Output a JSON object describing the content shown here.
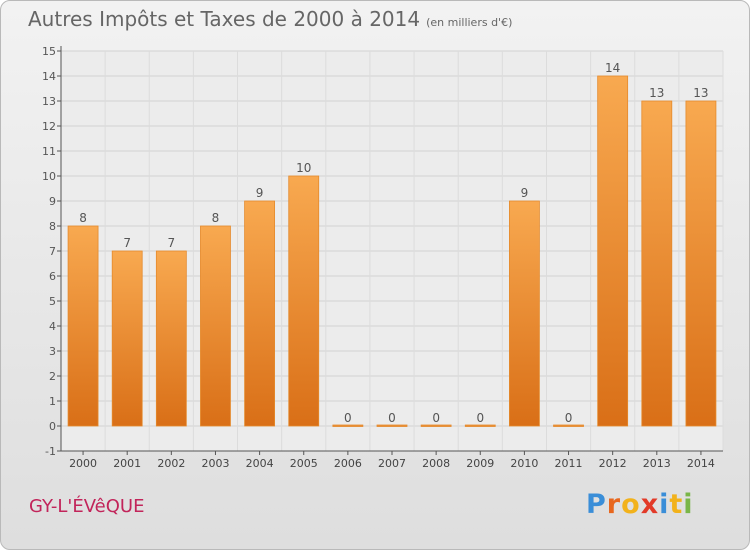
{
  "header": {
    "title": "Autres Impôts et Taxes de 2000 à 2014",
    "subtitle": "(en milliers d'€)"
  },
  "footer": {
    "commune": "GY-L'ÉVêQUE",
    "logo_letters": [
      "P",
      "r",
      "o",
      "x",
      "i",
      "t",
      "i"
    ],
    "logo_colors": [
      "#3a8ed8",
      "#e8671e",
      "#f2b21b",
      "#e23a28",
      "#3a8ed8",
      "#f2b21b",
      "#7ab648"
    ]
  },
  "colors": {
    "bar_light": "#f8a950",
    "bar_dark": "#d96f17",
    "axis": "#555555",
    "grid": "#d2d2d2"
  },
  "chart_data": {
    "type": "bar",
    "categories": [
      "2000",
      "2001",
      "2002",
      "2003",
      "2004",
      "2005",
      "2006",
      "2007",
      "2008",
      "2009",
      "2010",
      "2011",
      "2012",
      "2013",
      "2014"
    ],
    "values": [
      8,
      7,
      7,
      8,
      9,
      10,
      0,
      0,
      0,
      0,
      9,
      0,
      14,
      13,
      13
    ],
    "data_labels": [
      "8",
      "7",
      "7",
      "8",
      "9",
      "10",
      "0",
      "0",
      "0",
      "0",
      "9",
      "0",
      "14",
      "13",
      "13"
    ],
    "yticks": [
      "-1",
      "0",
      "1",
      "2",
      "3",
      "4",
      "5",
      "6",
      "7",
      "8",
      "9",
      "10",
      "11",
      "12",
      "13",
      "14",
      "15"
    ],
    "ylim": [
      -1,
      15
    ],
    "grid": true
  }
}
